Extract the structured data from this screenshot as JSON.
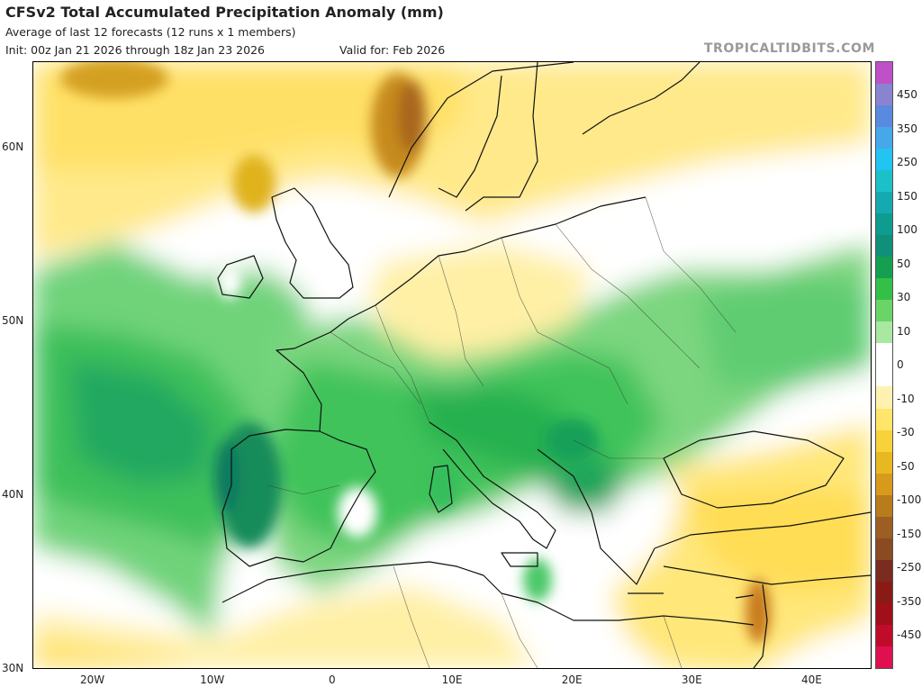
{
  "header": {
    "title": "CFSv2 Total Accumulated Precipitation Anomaly (mm)",
    "subtitle": "Average of last 12 forecasts (12 runs x 1 members)",
    "init": "Init: 00z Jan 21 2026 through 18z Jan 23 2026",
    "valid": "Valid for: Feb 2026",
    "brand": "TROPICALTIDBITS.COM"
  },
  "map": {
    "extent": {
      "lon": [
        -25,
        45
      ],
      "lat": [
        30,
        65
      ]
    },
    "lat_labels": [
      {
        "text": "60N",
        "lat": 60
      },
      {
        "text": "50N",
        "lat": 50
      },
      {
        "text": "40N",
        "lat": 40
      },
      {
        "text": "30N",
        "lat": 30
      }
    ],
    "lon_labels": [
      {
        "text": "20W",
        "lon": -20
      },
      {
        "text": "10W",
        "lon": -10
      },
      {
        "text": "0",
        "lon": 0
      },
      {
        "text": "10E",
        "lon": 10
      },
      {
        "text": "20E",
        "lon": 20
      },
      {
        "text": "30E",
        "lon": 30
      },
      {
        "text": "40E",
        "lon": 40
      }
    ]
  },
  "colorbar": {
    "labels": [
      "450",
      "350",
      "250",
      "150",
      "100",
      "50",
      "30",
      "10",
      "0",
      "-10",
      "-30",
      "-50",
      "-100",
      "-150",
      "-250",
      "-350",
      "-450"
    ],
    "colors": [
      "#c050c8",
      "#8a84d0",
      "#5a8ae0",
      "#46a8e8",
      "#22c4f2",
      "#1cc0c8",
      "#14aab0",
      "#0e9c90",
      "#109078",
      "#14a050",
      "#34c048",
      "#6ad468",
      "#a8e8a0",
      "#ffffff",
      "#ffffff",
      "#fff2b0",
      "#ffe66a",
      "#f8d23a",
      "#e8b820",
      "#d89a1a",
      "#b87c1c",
      "#9c5e22",
      "#8a4a22",
      "#7a2c20",
      "#8a1a16",
      "#a01018",
      "#c00c2a",
      "#e01050"
    ]
  }
}
